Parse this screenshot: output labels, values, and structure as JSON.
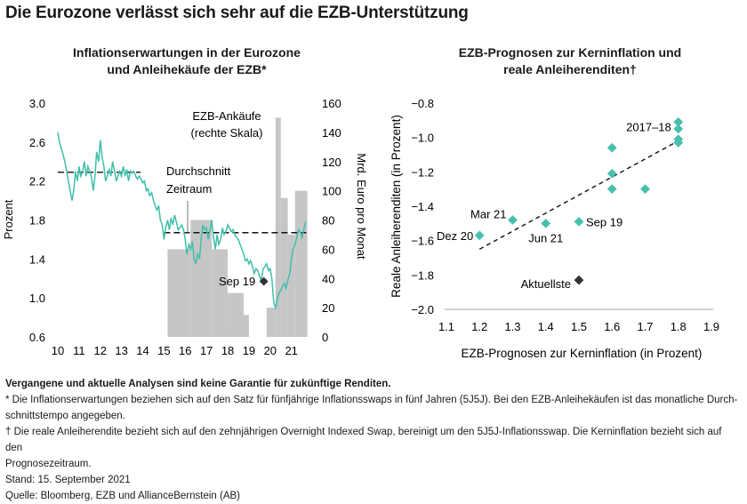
{
  "page": {
    "title": "Die Eurozone verlässt sich sehr auf die EZB-Unterstützung"
  },
  "colors": {
    "line": "#3fbfa9",
    "bars": "#c6c6c6",
    "points": "#45c0ad",
    "current": "#333333",
    "text": "#1a1a1a"
  },
  "footnotes": {
    "disclaimer": "Vergangene und aktuelle Analysen sind keine Garantie für zukünftige Renditen.",
    "note1_line1": "* Die Inflationserwartungen beziehen sich auf den Satz für fünfjährige Inflationsswaps in fünf Jahren (5J5J). Bei den EZB-Anleihekäufen ist das monatliche Durch-",
    "note1_line2": "schnittstempo angegeben.",
    "note2_line1": "† Die reale Anleiherendite bezieht sich auf den zehnjährigen Overnight Indexed Swap, bereinigt um den 5J5J-Inflationsswap. Die Kerninflation bezieht sich auf den",
    "note2_line2": "Prognosezeitraum.",
    "date": "Stand: 15. September 2021",
    "source": "Quelle: Bloomberg, EZB und AllianceBernstein (AB)"
  },
  "chart_data": [
    {
      "type": "line",
      "title_line1": "Inflationserwartungen in der Eurozone",
      "title_line2": "und Anleihekäufe der EZB*",
      "ylabel": "Prozent",
      "y2label": "Mrd. Euro pro Monat",
      "x_ticks": [
        "10",
        "11",
        "12",
        "13",
        "14",
        "15",
        "16",
        "17",
        "18",
        "19",
        "20",
        "21"
      ],
      "ylim": [
        0.6,
        3.0
      ],
      "y_ticks": [
        "3.0",
        "2.6",
        "2.2",
        "1.8",
        "1.4",
        "1.0",
        "0.6"
      ],
      "y2lim": [
        0,
        160
      ],
      "y2_ticks": [
        "160",
        "140",
        "120",
        "100",
        "80",
        "60",
        "40",
        "20",
        "0"
      ],
      "annotations": {
        "bars_label_line1": "EZB-Ankäufe",
        "bars_label_line2": "(rechte Skala)",
        "avg_label_line1": "Durchschnitt",
        "avg_label_line2": "Zeitraum",
        "sep19_label": "Sep 19"
      },
      "average_lines": [
        {
          "x_start": 2010.0,
          "x_end": 2013.9,
          "y": 2.29
        },
        {
          "x_start": 2015.0,
          "x_end": 2021.7,
          "y": 1.67
        }
      ],
      "sep19_point": {
        "x": 2019.7,
        "y": 1.17
      },
      "bars": [
        {
          "x_start": 2015.17,
          "x_end": 2016.25,
          "value": 60
        },
        {
          "x_start": 2016.25,
          "x_end": 2017.25,
          "value": 80
        },
        {
          "x_start": 2017.25,
          "x_end": 2018.0,
          "value": 60
        },
        {
          "x_start": 2018.0,
          "x_end": 2018.75,
          "value": 30
        },
        {
          "x_start": 2018.75,
          "x_end": 2019.0,
          "value": 15
        },
        {
          "x_start": 2019.83,
          "x_end": 2020.25,
          "value": 20
        },
        {
          "x_start": 2020.25,
          "x_end": 2020.5,
          "value": 150
        },
        {
          "x_start": 2020.5,
          "x_end": 2020.83,
          "value": 95
        },
        {
          "x_start": 2020.83,
          "x_end": 2021.17,
          "value": 70
        },
        {
          "x_start": 2021.17,
          "x_end": 2021.75,
          "value": 100
        }
      ],
      "series": [
        {
          "values": [
            [
              2010.0,
              2.7
            ],
            [
              2010.08,
              2.6
            ],
            [
              2010.17,
              2.53
            ],
            [
              2010.25,
              2.47
            ],
            [
              2010.33,
              2.4
            ],
            [
              2010.42,
              2.3
            ],
            [
              2010.5,
              2.2
            ],
            [
              2010.58,
              2.1
            ],
            [
              2010.67,
              2.0
            ],
            [
              2010.75,
              2.1
            ],
            [
              2010.83,
              2.3
            ],
            [
              2010.92,
              2.2
            ],
            [
              2011.0,
              2.35
            ],
            [
              2011.08,
              2.25
            ],
            [
              2011.17,
              2.3
            ],
            [
              2011.25,
              2.4
            ],
            [
              2011.33,
              2.25
            ],
            [
              2011.42,
              2.35
            ],
            [
              2011.5,
              2.3
            ],
            [
              2011.58,
              2.25
            ],
            [
              2011.67,
              2.1
            ],
            [
              2011.75,
              2.25
            ],
            [
              2011.83,
              2.5
            ],
            [
              2011.92,
              2.4
            ],
            [
              2012.0,
              2.62
            ],
            [
              2012.08,
              2.45
            ],
            [
              2012.17,
              2.35
            ],
            [
              2012.25,
              2.2
            ],
            [
              2012.33,
              2.25
            ],
            [
              2012.42,
              2.32
            ],
            [
              2012.5,
              2.25
            ],
            [
              2012.58,
              2.4
            ],
            [
              2012.67,
              2.3
            ],
            [
              2012.75,
              2.2
            ],
            [
              2012.83,
              2.25
            ],
            [
              2012.92,
              2.3
            ],
            [
              2013.0,
              2.25
            ],
            [
              2013.08,
              2.35
            ],
            [
              2013.17,
              2.25
            ],
            [
              2013.25,
              2.32
            ],
            [
              2013.33,
              2.2
            ],
            [
              2013.42,
              2.3
            ],
            [
              2013.5,
              2.28
            ],
            [
              2013.58,
              2.3
            ],
            [
              2013.67,
              2.25
            ],
            [
              2013.75,
              2.22
            ],
            [
              2013.83,
              2.25
            ],
            [
              2013.92,
              2.22
            ],
            [
              2014.0,
              2.18
            ],
            [
              2014.08,
              2.2
            ],
            [
              2014.17,
              2.1
            ],
            [
              2014.25,
              2.12
            ],
            [
              2014.33,
              2.05
            ],
            [
              2014.42,
              2.08
            ],
            [
              2014.5,
              2.0
            ],
            [
              2014.58,
              1.95
            ],
            [
              2014.67,
              1.9
            ],
            [
              2014.75,
              1.95
            ],
            [
              2014.83,
              1.8
            ],
            [
              2014.92,
              1.75
            ],
            [
              2015.0,
              1.6
            ],
            [
              2015.08,
              1.72
            ],
            [
              2015.17,
              1.8
            ],
            [
              2015.25,
              1.7
            ],
            [
              2015.33,
              1.82
            ],
            [
              2015.42,
              1.75
            ],
            [
              2015.5,
              1.85
            ],
            [
              2015.58,
              1.78
            ],
            [
              2015.67,
              1.7
            ],
            [
              2015.75,
              1.72
            ],
            [
              2015.83,
              1.75
            ],
            [
              2015.92,
              1.7
            ],
            [
              2016.0,
              1.6
            ],
            [
              2016.08,
              1.45
            ],
            [
              2016.17,
              1.55
            ],
            [
              2016.25,
              1.5
            ],
            [
              2016.33,
              1.58
            ],
            [
              2016.42,
              1.4
            ],
            [
              2016.5,
              1.35
            ],
            [
              2016.58,
              1.45
            ],
            [
              2016.67,
              1.4
            ],
            [
              2016.75,
              1.6
            ],
            [
              2016.83,
              1.75
            ],
            [
              2016.92,
              1.7
            ],
            [
              2017.0,
              1.72
            ],
            [
              2017.08,
              1.6
            ],
            [
              2017.17,
              1.7
            ],
            [
              2017.25,
              1.8
            ],
            [
              2017.33,
              1.62
            ],
            [
              2017.42,
              1.5
            ],
            [
              2017.5,
              1.65
            ],
            [
              2017.58,
              1.55
            ],
            [
              2017.67,
              1.6
            ],
            [
              2017.75,
              1.72
            ],
            [
              2017.83,
              1.65
            ],
            [
              2017.92,
              1.68
            ],
            [
              2018.0,
              1.75
            ],
            [
              2018.08,
              1.72
            ],
            [
              2018.17,
              1.68
            ],
            [
              2018.25,
              1.7
            ],
            [
              2018.33,
              1.65
            ],
            [
              2018.42,
              1.62
            ],
            [
              2018.5,
              1.6
            ],
            [
              2018.58,
              1.55
            ],
            [
              2018.67,
              1.5
            ],
            [
              2018.75,
              1.45
            ],
            [
              2018.83,
              1.38
            ],
            [
              2018.92,
              1.4
            ],
            [
              2019.0,
              1.35
            ],
            [
              2019.08,
              1.38
            ],
            [
              2019.17,
              1.32
            ],
            [
              2019.25,
              1.25
            ],
            [
              2019.33,
              1.3
            ],
            [
              2019.42,
              1.28
            ],
            [
              2019.5,
              1.22
            ],
            [
              2019.58,
              1.18
            ],
            [
              2019.67,
              1.3
            ],
            [
              2019.75,
              1.32
            ],
            [
              2019.83,
              1.35
            ],
            [
              2019.92,
              1.28
            ],
            [
              2020.0,
              1.3
            ],
            [
              2020.08,
              1.2
            ],
            [
              2020.17,
              0.95
            ],
            [
              2020.25,
              0.9
            ],
            [
              2020.33,
              0.98
            ],
            [
              2020.42,
              1.05
            ],
            [
              2020.5,
              1.08
            ],
            [
              2020.58,
              1.12
            ],
            [
              2020.67,
              1.15
            ],
            [
              2020.75,
              1.1
            ],
            [
              2020.83,
              1.18
            ],
            [
              2020.92,
              1.25
            ],
            [
              2021.0,
              1.4
            ],
            [
              2021.08,
              1.5
            ],
            [
              2021.17,
              1.55
            ],
            [
              2021.25,
              1.62
            ],
            [
              2021.33,
              1.7
            ],
            [
              2021.42,
              1.68
            ],
            [
              2021.5,
              1.62
            ],
            [
              2021.58,
              1.7
            ],
            [
              2021.67,
              1.78
            ]
          ]
        }
      ]
    },
    {
      "type": "scatter",
      "title_line1": "EZB-Prognosen zur Kerninflation und",
      "title_line2": "reale Anleiherenditen†",
      "xlabel": "EZB-Prognosen zur Kerninflation (in Prozent)",
      "ylabel": "Reale Anleiherenditen (in Prozent)",
      "xlim": [
        1.1,
        1.9
      ],
      "ylim": [
        -2.0,
        -0.8
      ],
      "x_ticks": [
        "1.1",
        "1.2",
        "1.3",
        "1.4",
        "1.5",
        "1.6",
        "1.7",
        "1.8",
        "1.9"
      ],
      "y_ticks": [
        "−0.8",
        "−1.0",
        "−1.2",
        "−1.4",
        "−1.6",
        "−1.8",
        "−2.0"
      ],
      "points": [
        {
          "x": 1.2,
          "y": -1.57,
          "label": "Dez 20"
        },
        {
          "x": 1.3,
          "y": -1.48,
          "label": "Mar 21"
        },
        {
          "x": 1.4,
          "y": -1.5,
          "label": "Jun 21"
        },
        {
          "x": 1.5,
          "y": -1.49,
          "label": "Sep 19"
        },
        {
          "x": 1.6,
          "y": -1.06
        },
        {
          "x": 1.6,
          "y": -1.21
        },
        {
          "x": 1.6,
          "y": -1.3
        },
        {
          "x": 1.7,
          "y": -1.3
        },
        {
          "x": 1.8,
          "y": -0.91,
          "label": "2017–18"
        },
        {
          "x": 1.8,
          "y": -0.95
        },
        {
          "x": 1.8,
          "y": -1.01
        },
        {
          "x": 1.8,
          "y": -1.03
        }
      ],
      "current": {
        "x": 1.5,
        "y": -1.83,
        "label": "Aktuellste"
      },
      "trendline": [
        {
          "x": 1.2,
          "y": -1.65
        },
        {
          "x": 1.8,
          "y": -1.02
        }
      ]
    }
  ]
}
